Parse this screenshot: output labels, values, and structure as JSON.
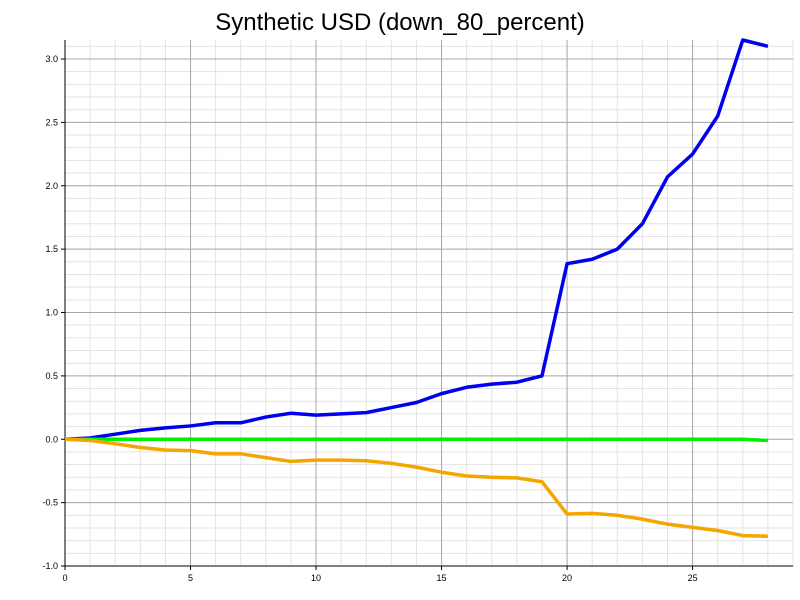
{
  "chart_data": {
    "type": "line",
    "title": "Synthetic USD (down_80_percent)",
    "xlabel": "",
    "ylabel": "",
    "xlim": [
      0,
      29
    ],
    "ylim": [
      -1.0,
      3.15
    ],
    "x_ticks": [
      0,
      5,
      10,
      15,
      20,
      25
    ],
    "x_tick_labels": [
      "0",
      "5",
      "10",
      "15",
      "20",
      "25"
    ],
    "y_ticks": [
      -1.0,
      -0.5,
      0.0,
      0.5,
      1.0,
      1.5,
      2.0,
      2.5,
      3.0
    ],
    "y_tick_labels": [
      "-1.0",
      "-0.5",
      "0.0",
      "0.5",
      "1.0",
      "1.5",
      "2.0",
      "2.5",
      "3.0"
    ],
    "grid": true,
    "legend": "none",
    "x": [
      0,
      1,
      2,
      3,
      4,
      5,
      6,
      7,
      8,
      9,
      10,
      11,
      12,
      13,
      14,
      15,
      16,
      17,
      18,
      19,
      20,
      21,
      22,
      23,
      24,
      25,
      26,
      27,
      28
    ],
    "series": [
      {
        "color": "#0000ee",
        "values": [
          0,
          0.01,
          0.04,
          0.07,
          0.09,
          0.105,
          0.13,
          0.13,
          0.175,
          0.205,
          0.19,
          0.2,
          0.21,
          0.25,
          0.29,
          0.36,
          0.41,
          0.435,
          0.45,
          0.5,
          1.385,
          1.42,
          1.5,
          1.7,
          2.07,
          2.25,
          2.55,
          3.15,
          3.1
        ]
      },
      {
        "color": "#00ee00",
        "values": [
          0,
          0,
          0,
          0,
          0,
          0,
          0,
          0,
          0,
          0,
          0,
          0,
          0,
          0,
          0,
          0,
          0,
          0,
          0,
          0,
          0,
          0,
          0,
          0,
          0,
          0,
          0,
          0,
          -0.01
        ]
      },
      {
        "color": "#f5a500",
        "values": [
          0,
          -0.01,
          -0.035,
          -0.065,
          -0.085,
          -0.09,
          -0.115,
          -0.115,
          -0.145,
          -0.175,
          -0.165,
          -0.165,
          -0.17,
          -0.19,
          -0.22,
          -0.26,
          -0.29,
          -0.3,
          -0.305,
          -0.335,
          -0.59,
          -0.585,
          -0.6,
          -0.63,
          -0.67,
          -0.695,
          -0.72,
          -0.76,
          -0.765
        ]
      }
    ]
  }
}
